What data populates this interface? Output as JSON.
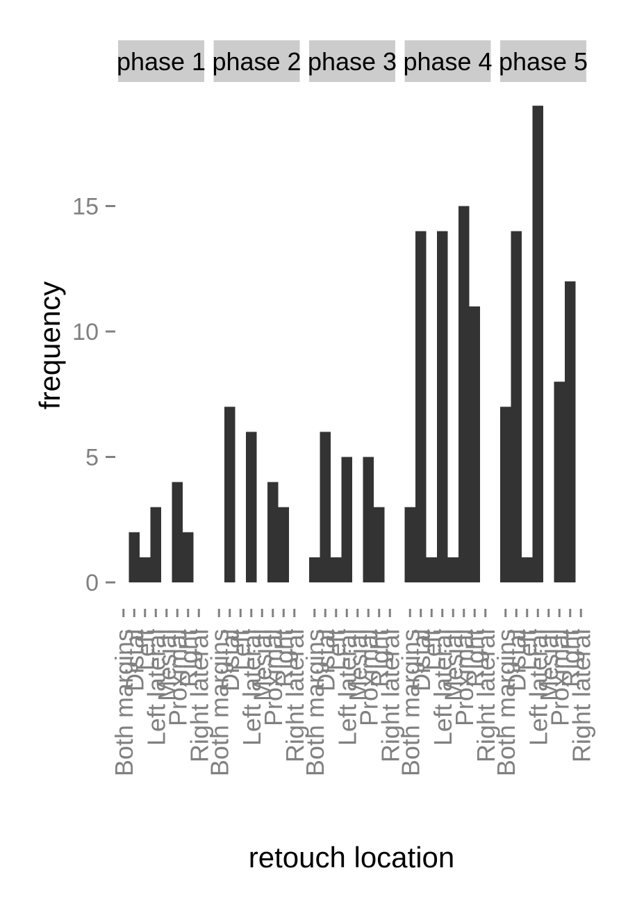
{
  "chart_data": {
    "type": "bar",
    "xlabel": "retouch location",
    "ylabel": "frequency",
    "ylim": [
      0,
      19
    ],
    "y_ticks": [
      0,
      5,
      10,
      15
    ],
    "grid": false,
    "categories": [
      "Both margins",
      "Distal",
      "Left",
      "Left lateral",
      "Mesial",
      "Proximal",
      "Right",
      "Right lateral"
    ],
    "panels": [
      {
        "name": "phase 1",
        "values": [
          0,
          2,
          1,
          3,
          0,
          4,
          2,
          0
        ]
      },
      {
        "name": "phase 2",
        "values": [
          0,
          7,
          0,
          6,
          0,
          4,
          3,
          0
        ]
      },
      {
        "name": "phase 3",
        "values": [
          1,
          6,
          1,
          5,
          0,
          5,
          3,
          0
        ]
      },
      {
        "name": "phase 4",
        "values": [
          3,
          14,
          1,
          14,
          1,
          15,
          11,
          0
        ]
      },
      {
        "name": "phase 5",
        "values": [
          7,
          14,
          1,
          19,
          0,
          8,
          12,
          0
        ]
      }
    ],
    "colors": {
      "bar": "#333333",
      "strip": "#cccccc",
      "tick": "#808080"
    }
  }
}
